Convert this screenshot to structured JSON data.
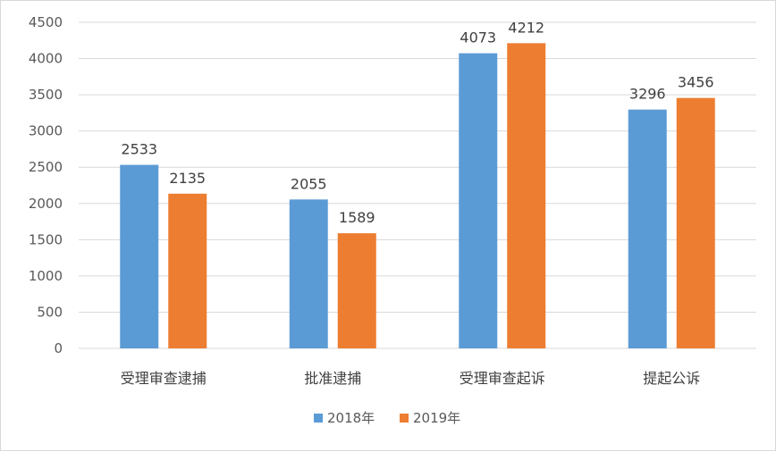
{
  "chart_data": {
    "type": "bar",
    "categories": [
      "受理审查逮捕",
      "批准逮捕",
      "受理审查起诉",
      "提起公诉"
    ],
    "series": [
      {
        "name": "2018年",
        "values": [
          2533,
          2055,
          4073,
          3296
        ],
        "color": "#5b9bd5"
      },
      {
        "name": "2019年",
        "values": [
          2135,
          1589,
          4212,
          3456
        ],
        "color": "#ed7d31"
      }
    ],
    "yticks": [
      0,
      500,
      1000,
      1500,
      2000,
      2500,
      3000,
      3500,
      4000,
      4500
    ],
    "ylim": [
      0,
      4500
    ],
    "grid": true,
    "legend": "bottom",
    "gridColor": "#d9d9d9"
  }
}
